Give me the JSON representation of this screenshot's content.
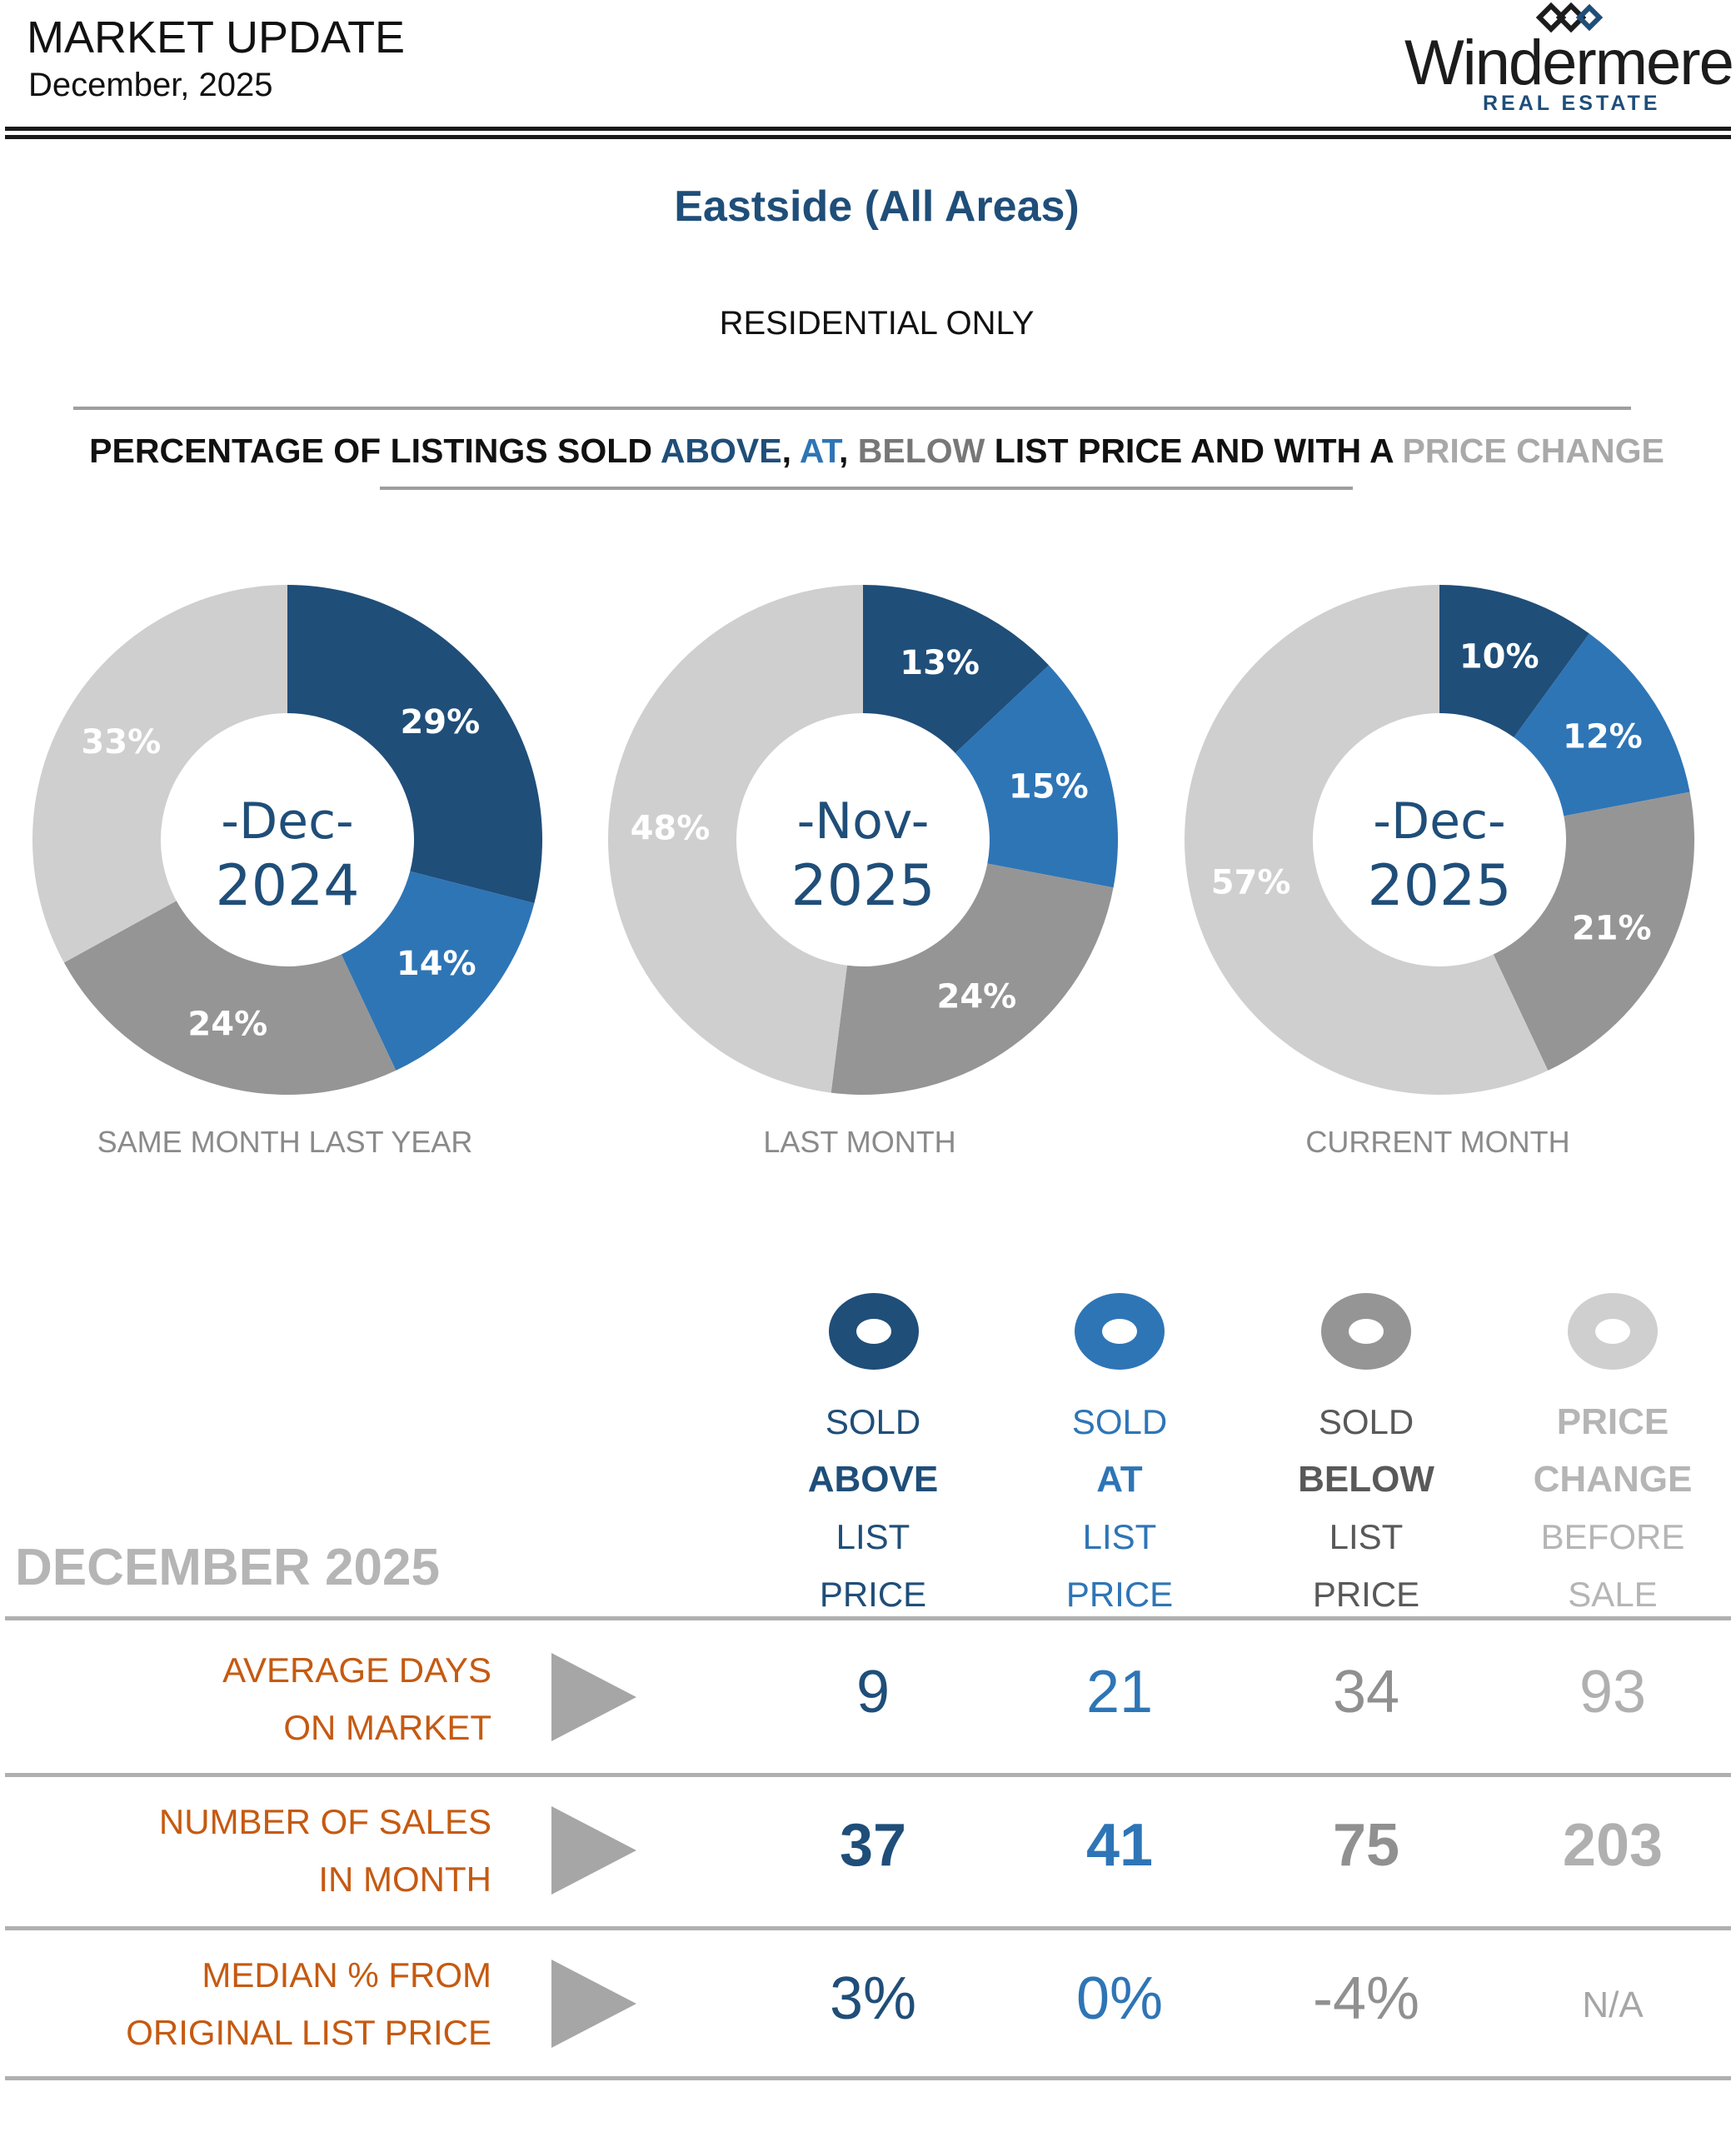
{
  "header": {
    "title": "MARKET UPDATE",
    "date": "December, 2025",
    "logo_name": "Windermere",
    "logo_sub": "REAL ESTATE"
  },
  "region": "Eastside (All Areas)",
  "subtitle": "RESIDENTIAL ONLY",
  "headline": {
    "part1": "PERCENTAGE OF LISTINGS SOLD ",
    "above": "ABOVE",
    "sep1": ", ",
    "at": "AT",
    "sep2": ", ",
    "below": "BELOW",
    "part2": " LIST PRICE AND WITH A ",
    "change": "PRICE CHANGE"
  },
  "colors": {
    "above": "#1f4e79",
    "at": "#2e75b6",
    "below": "#959595",
    "change": "#cfcfcf"
  },
  "chart_data": [
    {
      "type": "pie",
      "variant": "donut",
      "center_line1": "-Dec-",
      "center_line2": "2024",
      "caption": "SAME MONTH LAST YEAR",
      "categories": [
        "Sold Above List Price",
        "Sold At List Price",
        "Sold Below List Price",
        "Price Change Before Sale"
      ],
      "values": [
        29,
        14,
        24,
        33
      ],
      "labels": [
        "29%",
        "14%",
        "24%",
        "33%"
      ]
    },
    {
      "type": "pie",
      "variant": "donut",
      "center_line1": "-Nov-",
      "center_line2": "2025",
      "caption": "LAST MONTH",
      "categories": [
        "Sold Above List Price",
        "Sold At List Price",
        "Sold Below List Price",
        "Price Change Before Sale"
      ],
      "values": [
        13,
        15,
        24,
        48
      ],
      "labels": [
        "13%",
        "15%",
        "24%",
        "48%"
      ]
    },
    {
      "type": "pie",
      "variant": "donut",
      "center_line1": "-Dec-",
      "center_line2": "2025",
      "caption": "CURRENT MONTH",
      "categories": [
        "Sold Above List Price",
        "Sold At List Price",
        "Sold Below List Price",
        "Price Change Before Sale"
      ],
      "values": [
        10,
        12,
        21,
        57
      ],
      "labels": [
        "10%",
        "12%",
        "21%",
        "57%"
      ]
    }
  ],
  "table": {
    "month_label": "DECEMBER 2025",
    "columns": [
      {
        "line1": "SOLD",
        "line2": "ABOVE",
        "line3": "LIST",
        "line4": "PRICE"
      },
      {
        "line1": "SOLD",
        "line2": "AT",
        "line3": "LIST",
        "line4": "PRICE"
      },
      {
        "line1": "SOLD",
        "line2": "BELOW",
        "line3": "LIST",
        "line4": "PRICE"
      },
      {
        "line1": "PRICE",
        "line2": "CHANGE",
        "line3": "BEFORE",
        "line4": "SALE"
      }
    ],
    "rows": [
      {
        "label1": "AVERAGE DAYS",
        "label2": "ON MARKET",
        "values": [
          "9",
          "21",
          "34",
          "93"
        ]
      },
      {
        "label1": "NUMBER OF SALES",
        "label2": "IN MONTH",
        "values": [
          "37",
          "41",
          "75",
          "203"
        ]
      },
      {
        "label1": "MEDIAN % FROM",
        "label2": "ORIGINAL LIST PRICE",
        "values": [
          "3%",
          "0%",
          "-4%",
          "N/A"
        ]
      }
    ]
  }
}
